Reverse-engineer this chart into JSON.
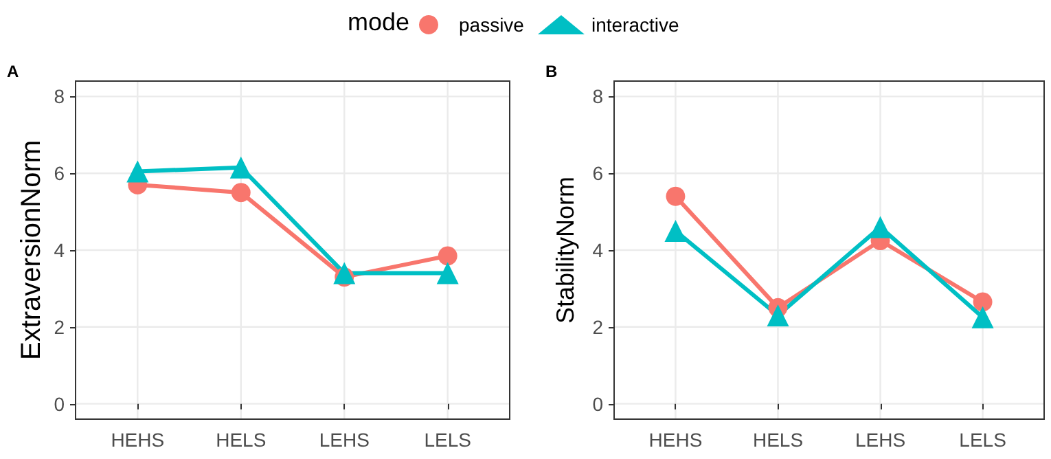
{
  "chart_data": [
    {
      "type": "line",
      "title": "A",
      "ylabel": "ExtraversionNorm",
      "categories": [
        "HEHS",
        "HELS",
        "LEHS",
        "LELS"
      ],
      "legend": "top",
      "legend_title": "mode",
      "line_style": "solid",
      "grid": true,
      "ylim": [
        -0.4,
        8.4
      ],
      "yticks": [
        0,
        2,
        4,
        6,
        8
      ],
      "series": [
        {
          "name": "passive",
          "color": "#f8766d",
          "marker": "circle",
          "values": [
            5.7,
            5.5,
            3.3,
            3.85
          ]
        },
        {
          "name": "interactive",
          "color": "#00bfc4",
          "marker": "triangle",
          "values": [
            6.05,
            6.15,
            3.4,
            3.4
          ]
        }
      ]
    },
    {
      "type": "line",
      "title": "B",
      "ylabel": "StabilityNorm",
      "categories": [
        "HEHS",
        "HELS",
        "LEHS",
        "LELS"
      ],
      "line_style": "solid",
      "grid": true,
      "ylim": [
        -0.4,
        8.4
      ],
      "yticks": [
        0,
        2,
        4,
        6,
        8
      ],
      "series": [
        {
          "color": "#f8766d",
          "marker": "circle",
          "values": [
            5.4,
            2.5,
            4.25,
            2.65
          ]
        },
        {
          "color": "#00bfc4",
          "marker": "triangle",
          "values": [
            4.5,
            2.3,
            4.6,
            2.25
          ]
        }
      ]
    }
  ]
}
